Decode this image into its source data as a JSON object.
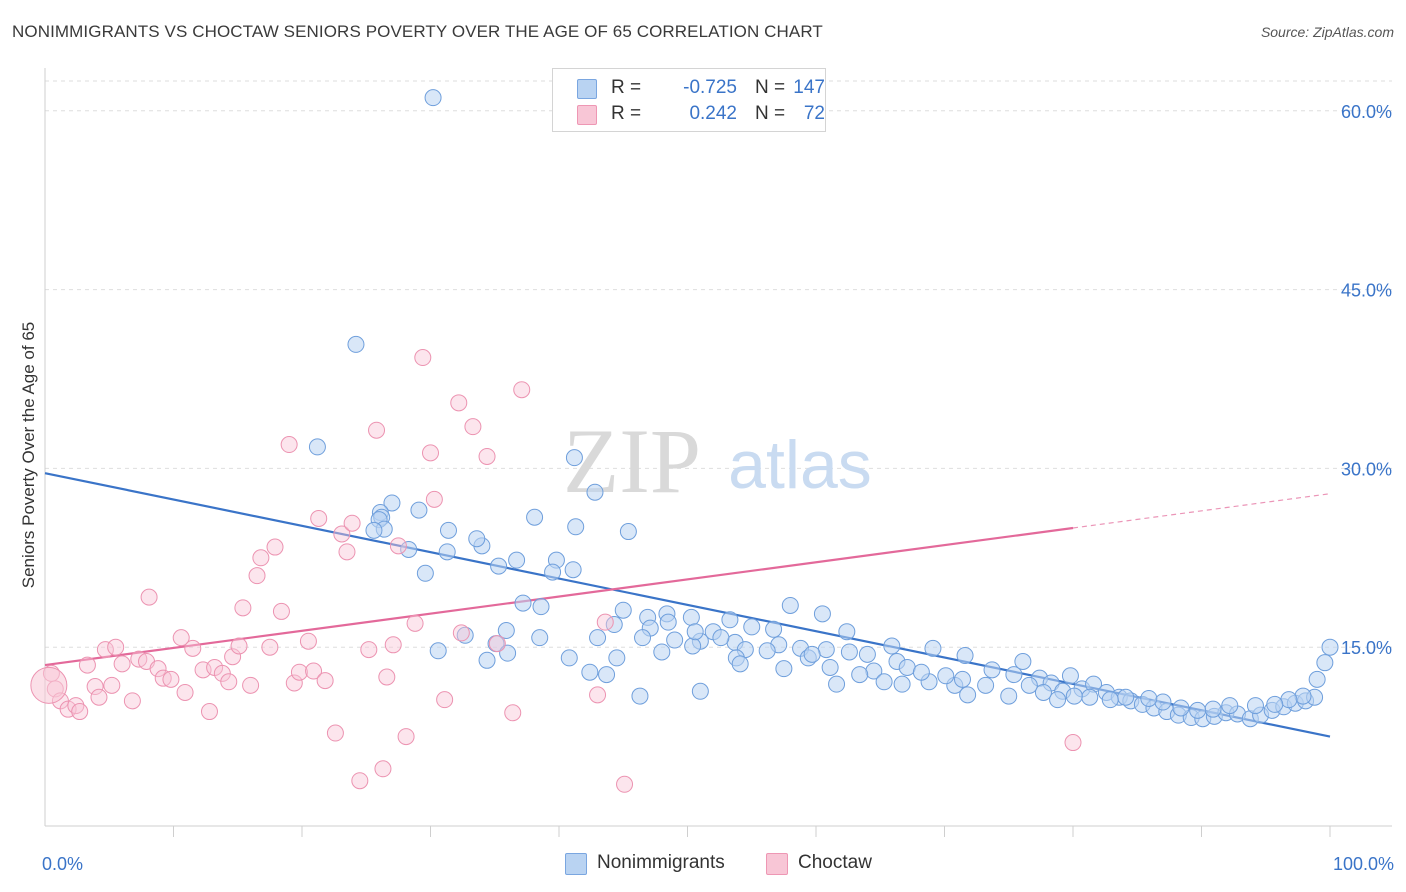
{
  "title": "NONIMMIGRANTS VS CHOCTAW SENIORS POVERTY OVER THE AGE OF 65 CORRELATION CHART",
  "source": "Source: ZipAtlas.com",
  "watermark": {
    "zip": "ZIP",
    "atlas": "atlas"
  },
  "legend": {
    "r_label": "R =",
    "n_label": "N =",
    "rows": [
      {
        "r": "-0.725",
        "n": "147",
        "fill": "#b9d3f2",
        "stroke": "#7aa6e0"
      },
      {
        "r": "0.242",
        "n": "72",
        "fill": "#f8c6d6",
        "stroke": "#ee97b4"
      }
    ]
  },
  "bottom_legend": [
    {
      "label": "Nonimmigrants",
      "fill": "#b9d3f2",
      "stroke": "#7aa6e0"
    },
    {
      "label": "Choctaw",
      "fill": "#f8c6d6",
      "stroke": "#ee97b4"
    }
  ],
  "chart_data": {
    "type": "scatter",
    "title": "NONIMMIGRANTS VS CHOCTAW SENIORS POVERTY OVER THE AGE OF 65 CORRELATION CHART",
    "xlabel": "",
    "ylabel": "Seniors Poverty Over the Age of 65",
    "xlim": [
      0,
      100
    ],
    "ylim": [
      0,
      63
    ],
    "x_tick_labels": [
      "0.0%",
      "100.0%"
    ],
    "y_ticks": [
      15,
      30,
      45,
      60
    ],
    "y_tick_labels": [
      "15.0%",
      "30.0%",
      "45.0%",
      "60.0%"
    ],
    "grid": true,
    "legend_position": "top-center",
    "colors": {
      "Nonimmigrants": "#3a74c8",
      "Choctaw": "#e3699a"
    },
    "series": [
      {
        "name": "Nonimmigrants",
        "r": -0.725,
        "n": 147,
        "trend": {
          "x0": 0,
          "y0": 29.6,
          "x1": 100,
          "y1": 7.5
        },
        "points": [
          [
            30.2,
            61.1
          ],
          [
            24.2,
            40.4
          ],
          [
            21.2,
            31.8
          ],
          [
            41.2,
            30.9
          ],
          [
            42.8,
            28.0
          ],
          [
            27.0,
            27.1
          ],
          [
            26.1,
            26.3
          ],
          [
            26.2,
            25.9
          ],
          [
            29.1,
            26.5
          ],
          [
            26.0,
            25.7
          ],
          [
            38.1,
            25.9
          ],
          [
            26.4,
            24.9
          ],
          [
            25.6,
            24.8
          ],
          [
            31.4,
            24.8
          ],
          [
            41.3,
            25.1
          ],
          [
            34.0,
            23.5
          ],
          [
            28.3,
            23.2
          ],
          [
            31.3,
            23.0
          ],
          [
            36.7,
            22.3
          ],
          [
            39.8,
            22.3
          ],
          [
            33.6,
            24.1
          ],
          [
            45.4,
            24.7
          ],
          [
            29.6,
            21.2
          ],
          [
            35.3,
            21.8
          ],
          [
            41.1,
            21.5
          ],
          [
            37.2,
            18.7
          ],
          [
            38.6,
            18.4
          ],
          [
            45.0,
            18.1
          ],
          [
            48.4,
            17.8
          ],
          [
            58.0,
            18.5
          ],
          [
            46.9,
            17.5
          ],
          [
            53.3,
            17.3
          ],
          [
            60.5,
            17.8
          ],
          [
            50.3,
            17.5
          ],
          [
            44.3,
            16.9
          ],
          [
            47.1,
            16.6
          ],
          [
            55.0,
            16.7
          ],
          [
            56.7,
            16.5
          ],
          [
            62.4,
            16.3
          ],
          [
            52.0,
            16.3
          ],
          [
            49.0,
            15.6
          ],
          [
            43.0,
            15.8
          ],
          [
            32.7,
            16.0
          ],
          [
            35.9,
            16.4
          ],
          [
            38.5,
            15.8
          ],
          [
            51.0,
            15.5
          ],
          [
            53.7,
            15.4
          ],
          [
            57.1,
            15.2
          ],
          [
            58.8,
            14.9
          ],
          [
            60.8,
            14.8
          ],
          [
            65.9,
            15.1
          ],
          [
            64.0,
            14.4
          ],
          [
            66.3,
            13.8
          ],
          [
            62.6,
            14.6
          ],
          [
            69.1,
            14.9
          ],
          [
            71.6,
            14.3
          ],
          [
            50.4,
            15.1
          ],
          [
            54.5,
            14.8
          ],
          [
            48.0,
            14.6
          ],
          [
            44.5,
            14.1
          ],
          [
            40.8,
            14.1
          ],
          [
            35.1,
            15.3
          ],
          [
            36.0,
            14.5
          ],
          [
            34.4,
            13.9
          ],
          [
            30.6,
            14.7
          ],
          [
            42.4,
            12.9
          ],
          [
            43.7,
            12.7
          ],
          [
            46.3,
            10.9
          ],
          [
            51.0,
            11.3
          ],
          [
            53.8,
            14.1
          ],
          [
            59.4,
            14.1
          ],
          [
            61.6,
            11.9
          ],
          [
            64.5,
            13.0
          ],
          [
            67.1,
            13.3
          ],
          [
            68.8,
            12.1
          ],
          [
            70.8,
            11.8
          ],
          [
            71.4,
            12.3
          ],
          [
            73.7,
            13.1
          ],
          [
            75.4,
            12.7
          ],
          [
            76.1,
            13.8
          ],
          [
            77.4,
            12.4
          ],
          [
            78.3,
            12.0
          ],
          [
            79.2,
            11.3
          ],
          [
            79.8,
            12.6
          ],
          [
            80.7,
            11.5
          ],
          [
            81.6,
            11.9
          ],
          [
            82.6,
            11.2
          ],
          [
            83.6,
            10.8
          ],
          [
            84.5,
            10.5
          ],
          [
            85.4,
            10.2
          ],
          [
            86.3,
            9.9
          ],
          [
            87.3,
            9.6
          ],
          [
            88.2,
            9.3
          ],
          [
            89.2,
            9.1
          ],
          [
            90.1,
            9.0
          ],
          [
            91.0,
            9.2
          ],
          [
            91.9,
            9.5
          ],
          [
            92.8,
            9.4
          ],
          [
            93.8,
            9.0
          ],
          [
            94.6,
            9.3
          ],
          [
            95.5,
            9.7
          ],
          [
            96.4,
            10.0
          ],
          [
            97.3,
            10.3
          ],
          [
            98.1,
            10.5
          ],
          [
            99.0,
            12.3
          ],
          [
            99.6,
            13.7
          ],
          [
            100.0,
            15.0
          ],
          [
            98.8,
            10.8
          ],
          [
            97.9,
            10.9
          ],
          [
            96.8,
            10.6
          ],
          [
            95.7,
            10.2
          ],
          [
            94.2,
            10.1
          ],
          [
            92.2,
            10.1
          ],
          [
            90.9,
            9.8
          ],
          [
            89.7,
            9.7
          ],
          [
            88.4,
            9.9
          ],
          [
            87.0,
            10.4
          ],
          [
            85.9,
            10.7
          ],
          [
            84.1,
            10.8
          ],
          [
            82.9,
            10.6
          ],
          [
            81.3,
            10.8
          ],
          [
            80.1,
            10.9
          ],
          [
            78.8,
            10.6
          ],
          [
            77.7,
            11.2
          ],
          [
            76.6,
            11.8
          ],
          [
            75.0,
            10.9
          ],
          [
            73.2,
            11.8
          ],
          [
            71.8,
            11.0
          ],
          [
            70.1,
            12.6
          ],
          [
            68.2,
            12.9
          ],
          [
            66.7,
            11.9
          ],
          [
            65.3,
            12.1
          ],
          [
            63.4,
            12.7
          ],
          [
            61.1,
            13.3
          ],
          [
            59.7,
            14.4
          ],
          [
            57.5,
            13.2
          ],
          [
            56.2,
            14.7
          ],
          [
            54.1,
            13.6
          ],
          [
            52.6,
            15.8
          ],
          [
            50.6,
            16.3
          ],
          [
            48.5,
            17.1
          ],
          [
            46.5,
            15.8
          ],
          [
            39.5,
            21.3
          ]
        ]
      },
      {
        "name": "Choctaw",
        "r": 0.242,
        "n": 72,
        "trend": {
          "x0": 0,
          "y0": 13.5,
          "x1": 80,
          "y1": 25.0
        },
        "points": [
          [
            0.5,
            12.8
          ],
          [
            0.8,
            11.5
          ],
          [
            1.2,
            10.5
          ],
          [
            1.8,
            9.8
          ],
          [
            2.4,
            10.1
          ],
          [
            2.7,
            9.6
          ],
          [
            3.3,
            13.5
          ],
          [
            3.9,
            11.7
          ],
          [
            4.2,
            10.8
          ],
          [
            4.7,
            14.8
          ],
          [
            5.5,
            15.0
          ],
          [
            5.2,
            11.8
          ],
          [
            6.0,
            13.6
          ],
          [
            6.8,
            10.5
          ],
          [
            7.3,
            14.0
          ],
          [
            7.9,
            13.8
          ],
          [
            8.1,
            19.2
          ],
          [
            8.8,
            13.2
          ],
          [
            9.2,
            12.4
          ],
          [
            9.8,
            12.3
          ],
          [
            10.6,
            15.8
          ],
          [
            10.9,
            11.2
          ],
          [
            11.5,
            14.9
          ],
          [
            12.3,
            13.1
          ],
          [
            12.8,
            9.6
          ],
          [
            13.2,
            13.3
          ],
          [
            13.8,
            12.8
          ],
          [
            14.3,
            12.1
          ],
          [
            14.6,
            14.2
          ],
          [
            15.1,
            15.1
          ],
          [
            15.4,
            18.3
          ],
          [
            16.0,
            11.8
          ],
          [
            16.5,
            21.0
          ],
          [
            16.8,
            22.5
          ],
          [
            17.5,
            15.0
          ],
          [
            17.9,
            23.4
          ],
          [
            18.4,
            18.0
          ],
          [
            19.0,
            32.0
          ],
          [
            19.4,
            12.0
          ],
          [
            19.8,
            12.9
          ],
          [
            20.5,
            15.5
          ],
          [
            20.9,
            13.0
          ],
          [
            21.3,
            25.8
          ],
          [
            21.8,
            12.2
          ],
          [
            22.6,
            7.8
          ],
          [
            23.1,
            24.5
          ],
          [
            23.5,
            23.0
          ],
          [
            23.9,
            25.4
          ],
          [
            24.5,
            3.8
          ],
          [
            25.2,
            14.8
          ],
          [
            25.8,
            33.2
          ],
          [
            26.3,
            4.8
          ],
          [
            26.6,
            12.5
          ],
          [
            27.1,
            15.2
          ],
          [
            27.5,
            23.5
          ],
          [
            28.1,
            7.5
          ],
          [
            28.8,
            17.0
          ],
          [
            29.4,
            39.3
          ],
          [
            30.0,
            31.3
          ],
          [
            30.3,
            27.4
          ],
          [
            31.1,
            10.6
          ],
          [
            32.2,
            35.5
          ],
          [
            32.4,
            16.2
          ],
          [
            33.3,
            33.5
          ],
          [
            34.4,
            31.0
          ],
          [
            35.2,
            15.3
          ],
          [
            36.4,
            9.5
          ],
          [
            37.1,
            36.6
          ],
          [
            43.6,
            17.1
          ],
          [
            45.1,
            3.5
          ],
          [
            80.0,
            7.0
          ],
          [
            43.0,
            11.0
          ]
        ]
      }
    ]
  }
}
